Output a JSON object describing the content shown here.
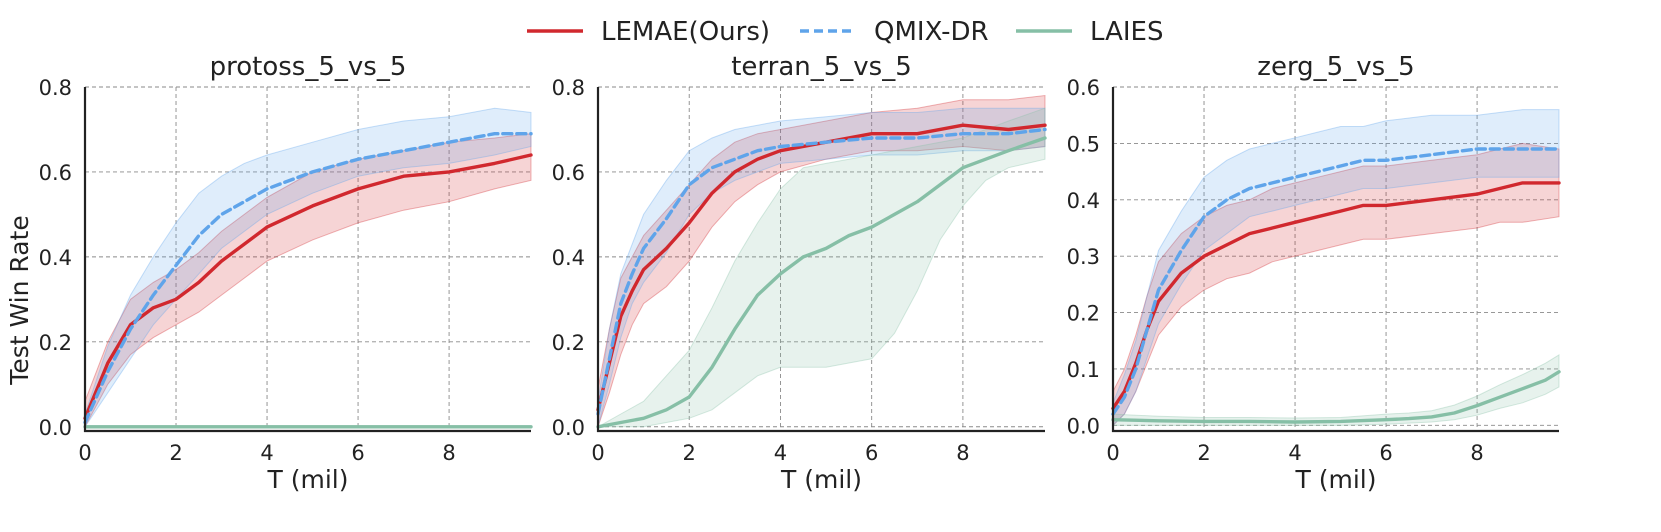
{
  "legend": [
    {
      "label": "LEMAE(Ours)",
      "color": "#d1282e",
      "dash": "solid"
    },
    {
      "label": "QMIX-DR",
      "color": "#5fa4ea",
      "dash": "dashed"
    },
    {
      "label": "LAIES",
      "color": "#86bfa6",
      "dash": "solid"
    }
  ],
  "ylabel": "Test Win Rate",
  "chart_data": [
    {
      "type": "line",
      "title": "protoss_5_vs_5",
      "xlabel": "T (mil)",
      "xlim": [
        0,
        9.8
      ],
      "ylim": [
        -0.01,
        0.8
      ],
      "xticks": [
        0,
        2,
        4,
        6,
        8
      ],
      "yticks": [
        0.0,
        0.2,
        0.4,
        0.6,
        0.8
      ],
      "ytick_labels": [
        "0.0",
        "0.2",
        "0.4",
        "0.6",
        "0.8"
      ],
      "grid": true,
      "series": [
        {
          "name": "LEMAE(Ours)",
          "x": [
            0,
            0.5,
            1,
            1.5,
            2,
            2.5,
            3,
            3.5,
            4,
            5,
            6,
            7,
            8,
            9,
            9.8
          ],
          "y": [
            0.02,
            0.15,
            0.24,
            0.28,
            0.3,
            0.34,
            0.39,
            0.43,
            0.47,
            0.52,
            0.56,
            0.59,
            0.6,
            0.62,
            0.64
          ],
          "lower": [
            0.0,
            0.1,
            0.17,
            0.21,
            0.24,
            0.27,
            0.31,
            0.35,
            0.39,
            0.44,
            0.48,
            0.51,
            0.53,
            0.56,
            0.58
          ],
          "upper": [
            0.06,
            0.2,
            0.3,
            0.34,
            0.37,
            0.41,
            0.46,
            0.5,
            0.54,
            0.6,
            0.63,
            0.65,
            0.67,
            0.68,
            0.69
          ]
        },
        {
          "name": "QMIX-DR",
          "x": [
            0,
            0.5,
            1,
            1.5,
            2,
            2.5,
            3,
            3.5,
            4,
            5,
            6,
            7,
            8,
            9,
            9.8
          ],
          "y": [
            0.01,
            0.13,
            0.23,
            0.31,
            0.38,
            0.45,
            0.5,
            0.53,
            0.56,
            0.6,
            0.63,
            0.65,
            0.67,
            0.69,
            0.69
          ],
          "lower": [
            0.0,
            0.08,
            0.16,
            0.24,
            0.3,
            0.36,
            0.42,
            0.46,
            0.5,
            0.55,
            0.59,
            0.61,
            0.62,
            0.64,
            0.66
          ],
          "upper": [
            0.03,
            0.19,
            0.31,
            0.4,
            0.48,
            0.55,
            0.59,
            0.62,
            0.64,
            0.67,
            0.7,
            0.72,
            0.73,
            0.75,
            0.74
          ]
        },
        {
          "name": "LAIES",
          "x": [
            0,
            2,
            4,
            6,
            8,
            9.8
          ],
          "y": [
            0.0,
            0.0,
            0.0,
            0.0,
            0.0,
            0.0
          ],
          "lower": [
            0.0,
            0.0,
            0.0,
            0.0,
            0.0,
            0.0
          ],
          "upper": [
            0.003,
            0.003,
            0.003,
            0.003,
            0.003,
            0.003
          ]
        }
      ]
    },
    {
      "type": "line",
      "title": "terran_5_vs_5",
      "xlabel": "T (mil)",
      "xlim": [
        0,
        9.8
      ],
      "ylim": [
        -0.01,
        0.8
      ],
      "xticks": [
        0,
        2,
        4,
        6,
        8
      ],
      "yticks": [
        0.0,
        0.2,
        0.4,
        0.6,
        0.8
      ],
      "ytick_labels": [
        "0.0",
        "0.2",
        "0.4",
        "0.6",
        "0.8"
      ],
      "grid": true,
      "series": [
        {
          "name": "LEMAE(Ours)",
          "x": [
            0,
            0.25,
            0.5,
            0.75,
            1,
            1.5,
            2,
            2.5,
            3,
            3.5,
            4,
            5,
            6,
            7,
            8,
            9,
            9.8
          ],
          "y": [
            0.04,
            0.15,
            0.26,
            0.32,
            0.37,
            0.42,
            0.48,
            0.55,
            0.6,
            0.63,
            0.65,
            0.67,
            0.69,
            0.69,
            0.71,
            0.7,
            0.71
          ],
          "lower": [
            0.0,
            0.08,
            0.17,
            0.24,
            0.29,
            0.33,
            0.39,
            0.47,
            0.53,
            0.57,
            0.6,
            0.63,
            0.65,
            0.65,
            0.66,
            0.65,
            0.66
          ],
          "upper": [
            0.09,
            0.23,
            0.35,
            0.4,
            0.45,
            0.51,
            0.57,
            0.63,
            0.67,
            0.69,
            0.7,
            0.72,
            0.74,
            0.75,
            0.77,
            0.77,
            0.78
          ]
        },
        {
          "name": "QMIX-DR",
          "x": [
            0,
            0.25,
            0.5,
            0.75,
            1,
            1.5,
            2,
            2.5,
            3,
            3.5,
            4,
            5,
            6,
            7,
            8,
            9,
            9.8
          ],
          "y": [
            0.03,
            0.16,
            0.29,
            0.36,
            0.42,
            0.49,
            0.57,
            0.61,
            0.63,
            0.65,
            0.66,
            0.67,
            0.68,
            0.68,
            0.69,
            0.69,
            0.7
          ],
          "lower": [
            0.0,
            0.1,
            0.21,
            0.29,
            0.34,
            0.41,
            0.5,
            0.55,
            0.58,
            0.6,
            0.62,
            0.63,
            0.64,
            0.64,
            0.65,
            0.65,
            0.66
          ],
          "upper": [
            0.06,
            0.23,
            0.36,
            0.43,
            0.5,
            0.58,
            0.65,
            0.68,
            0.7,
            0.71,
            0.72,
            0.73,
            0.74,
            0.74,
            0.75,
            0.75,
            0.75
          ]
        },
        {
          "name": "LAIES",
          "x": [
            0,
            0.5,
            1,
            1.5,
            2,
            2.5,
            3,
            3.5,
            4,
            4.5,
            5,
            5.5,
            6,
            6.5,
            7,
            7.5,
            8,
            8.5,
            9,
            9.8
          ],
          "y": [
            0.0,
            0.01,
            0.02,
            0.04,
            0.07,
            0.14,
            0.23,
            0.31,
            0.36,
            0.4,
            0.42,
            0.45,
            0.47,
            0.5,
            0.53,
            0.57,
            0.61,
            0.63,
            0.65,
            0.68
          ],
          "lower": [
            0.0,
            0.0,
            0.0,
            0.01,
            0.02,
            0.04,
            0.08,
            0.12,
            0.14,
            0.14,
            0.14,
            0.15,
            0.16,
            0.22,
            0.32,
            0.44,
            0.52,
            0.58,
            0.61,
            0.63
          ],
          "upper": [
            0.0,
            0.03,
            0.06,
            0.12,
            0.18,
            0.28,
            0.39,
            0.48,
            0.56,
            0.61,
            0.62,
            0.63,
            0.64,
            0.65,
            0.66,
            0.67,
            0.68,
            0.7,
            0.72,
            0.75
          ]
        }
      ]
    },
    {
      "type": "line",
      "title": "zerg_5_vs_5",
      "xlabel": "T (mil)",
      "xlim": [
        0,
        9.8
      ],
      "ylim": [
        -0.01,
        0.6
      ],
      "xticks": [
        0,
        2,
        4,
        6,
        8
      ],
      "yticks": [
        0.0,
        0.1,
        0.2,
        0.3,
        0.4,
        0.5,
        0.6
      ],
      "ytick_labels": [
        "0.0",
        "0.1",
        "0.2",
        "0.3",
        "0.4",
        "0.5",
        "0.6"
      ],
      "grid": true,
      "series": [
        {
          "name": "LEMAE(Ours)",
          "x": [
            0,
            0.25,
            0.5,
            0.75,
            1,
            1.5,
            2,
            2.5,
            3,
            3.5,
            4,
            4.5,
            5,
            5.5,
            6,
            7,
            8,
            8.5,
            9,
            9.8
          ],
          "y": [
            0.03,
            0.06,
            0.11,
            0.17,
            0.22,
            0.27,
            0.3,
            0.32,
            0.34,
            0.35,
            0.36,
            0.37,
            0.38,
            0.39,
            0.39,
            0.4,
            0.41,
            0.42,
            0.43,
            0.43
          ],
          "lower": [
            0.0,
            0.02,
            0.06,
            0.11,
            0.16,
            0.21,
            0.24,
            0.26,
            0.27,
            0.29,
            0.3,
            0.31,
            0.32,
            0.33,
            0.33,
            0.34,
            0.35,
            0.36,
            0.36,
            0.37
          ],
          "upper": [
            0.06,
            0.1,
            0.16,
            0.23,
            0.29,
            0.34,
            0.37,
            0.39,
            0.4,
            0.42,
            0.43,
            0.44,
            0.45,
            0.46,
            0.46,
            0.47,
            0.48,
            0.49,
            0.5,
            0.49
          ]
        },
        {
          "name": "QMIX-DR",
          "x": [
            0,
            0.25,
            0.5,
            0.75,
            1,
            1.5,
            2,
            2.5,
            3,
            3.5,
            4,
            4.5,
            5,
            5.5,
            6,
            7,
            8,
            9,
            9.8
          ],
          "y": [
            0.02,
            0.05,
            0.1,
            0.17,
            0.24,
            0.31,
            0.37,
            0.4,
            0.42,
            0.43,
            0.44,
            0.45,
            0.46,
            0.47,
            0.47,
            0.48,
            0.49,
            0.49,
            0.49
          ],
          "lower": [
            0.0,
            0.02,
            0.06,
            0.12,
            0.18,
            0.25,
            0.31,
            0.34,
            0.37,
            0.38,
            0.39,
            0.4,
            0.41,
            0.42,
            0.42,
            0.43,
            0.44,
            0.44,
            0.44
          ],
          "upper": [
            0.04,
            0.09,
            0.15,
            0.23,
            0.31,
            0.38,
            0.44,
            0.47,
            0.49,
            0.5,
            0.51,
            0.52,
            0.53,
            0.53,
            0.54,
            0.55,
            0.55,
            0.56,
            0.56
          ]
        },
        {
          "name": "LAIES",
          "x": [
            0,
            1,
            2,
            3,
            4,
            5,
            6,
            6.5,
            7,
            7.5,
            8,
            8.5,
            9,
            9.5,
            9.8
          ],
          "y": [
            0.01,
            0.008,
            0.007,
            0.007,
            0.006,
            0.007,
            0.01,
            0.012,
            0.015,
            0.022,
            0.035,
            0.05,
            0.065,
            0.08,
            0.095
          ],
          "lower": [
            0.0,
            0.0,
            0.0,
            0.0,
            0.0,
            0.0,
            0.002,
            0.004,
            0.006,
            0.01,
            0.018,
            0.03,
            0.04,
            0.055,
            0.068
          ],
          "upper": [
            0.02,
            0.016,
            0.014,
            0.014,
            0.013,
            0.014,
            0.02,
            0.022,
            0.026,
            0.036,
            0.052,
            0.072,
            0.09,
            0.11,
            0.125
          ]
        }
      ]
    }
  ]
}
